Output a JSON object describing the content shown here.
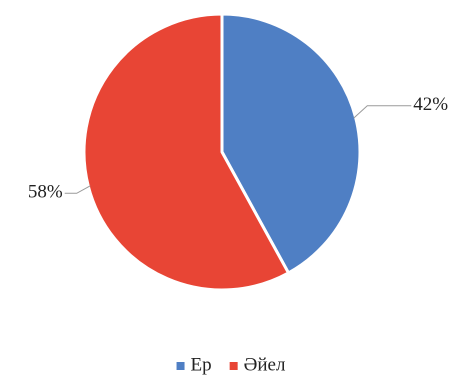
{
  "chart_data": {
    "type": "pie",
    "categories": [
      "Ер",
      "Әйел"
    ],
    "values": [
      42,
      58
    ],
    "labels": [
      "42%",
      "58%"
    ],
    "colors": [
      "#4f7fc4",
      "#e84535"
    ],
    "start_angle_deg": 0,
    "direction": "clockwise",
    "legend": {
      "position": "bottom",
      "entries": [
        "Ер",
        "Әйел"
      ]
    },
    "title": ""
  }
}
